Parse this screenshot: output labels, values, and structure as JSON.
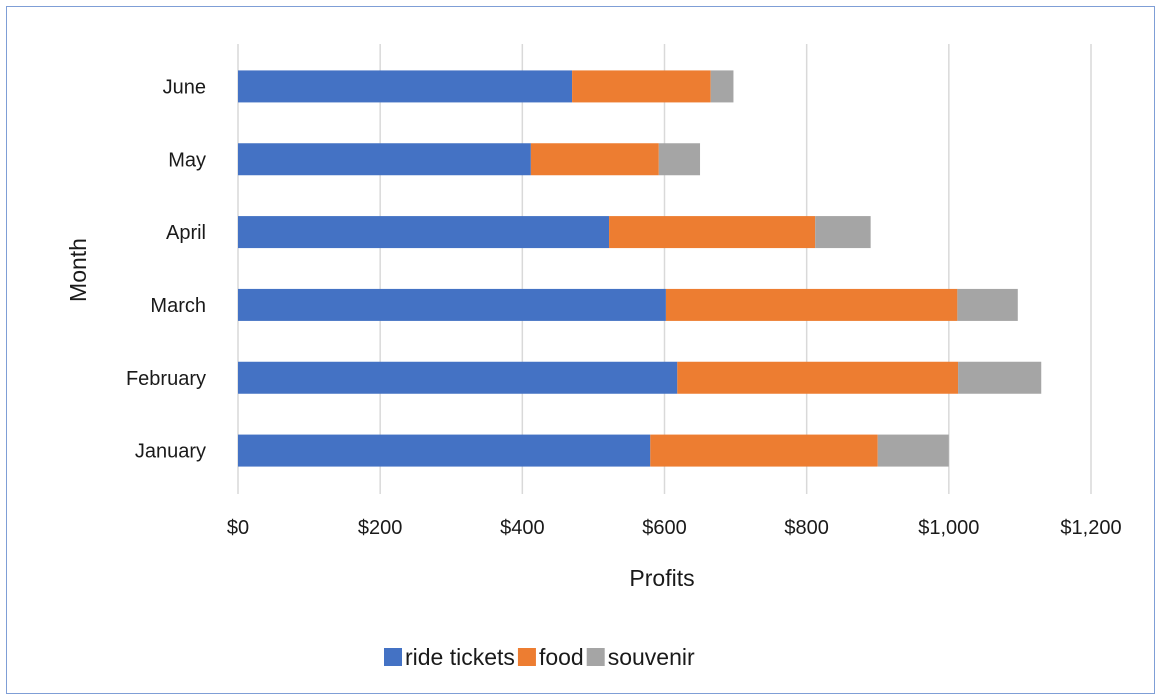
{
  "chart_data": {
    "type": "bar",
    "orientation": "horizontal",
    "stacked": true,
    "title": "",
    "xlabel": "Profits",
    "ylabel": "Month",
    "categories": [
      "January",
      "February",
      "March",
      "April",
      "May",
      "June"
    ],
    "series": [
      {
        "name": "ride tickets",
        "color": "#4472c4",
        "values": [
          580,
          618,
          602,
          522,
          412,
          470
        ]
      },
      {
        "name": "food",
        "color": "#ed7d31",
        "values": [
          320,
          395,
          410,
          290,
          180,
          195
        ]
      },
      {
        "name": "souvenir",
        "color": "#a5a5a5",
        "values": [
          100,
          117,
          85,
          78,
          58,
          32
        ]
      }
    ],
    "xlim": [
      0,
      1200
    ],
    "xticks": [
      0,
      200,
      400,
      600,
      800,
      1000,
      1200
    ],
    "xtick_labels": [
      "$0",
      "$200",
      "$400",
      "$600",
      "$800",
      "$1,000",
      "$1,200"
    ],
    "grid": "vertical",
    "legend_position": "bottom"
  }
}
